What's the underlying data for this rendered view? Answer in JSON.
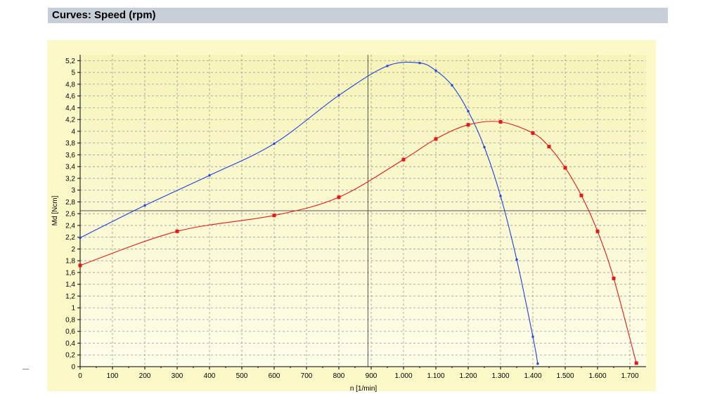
{
  "header": {
    "title": "Curves: Speed (rpm)"
  },
  "colors": {
    "panel_bg": "#fbf9c8",
    "plot_bg_top": "#f6f4b9",
    "plot_bg_bottom": "#fefde9",
    "header_bg": "#c8ced7",
    "grid": "#9a9a9a",
    "crosshair": "#555555",
    "series_blue": "#1f3fe0",
    "series_red": "#e01a1a"
  },
  "chart_data": {
    "type": "line",
    "xlabel": "n [1/min]",
    "ylabel": "Md [Ncm]",
    "xlim": [
      0,
      1750
    ],
    "ylim": [
      0,
      5.3
    ],
    "grid": true,
    "legend": "none",
    "crosshair": {
      "x": 890,
      "y": 2.65
    },
    "x_ticks": [
      0,
      100,
      200,
      300,
      400,
      500,
      600,
      700,
      800,
      900,
      1000,
      1100,
      1200,
      1300,
      1400,
      1500,
      1600,
      1700
    ],
    "x_tick_labels": [
      "0",
      "100",
      "200",
      "300",
      "400",
      "500",
      "600",
      "700",
      "800",
      "900",
      "1.000",
      "1.100",
      "1.200",
      "1.300",
      "1.400",
      "1.500",
      "1.600",
      "1.700"
    ],
    "y_ticks": [
      0,
      0.2,
      0.4,
      0.6,
      0.8,
      1,
      1.2,
      1.4,
      1.6,
      1.8,
      2,
      2.2,
      2.4,
      2.6,
      2.8,
      3,
      3.2,
      3.4,
      3.6,
      3.8,
      4,
      4.2,
      4.4,
      4.6,
      4.8,
      5,
      5.2
    ],
    "y_tick_labels": [
      "0",
      "0,2",
      "0,4",
      "0,6",
      "0,8",
      "1",
      "1,2",
      "1,4",
      "1,6",
      "1,8",
      "2",
      "2,2",
      "2,4",
      "2,6",
      "2,8",
      "3",
      "3,2",
      "3,4",
      "3,6",
      "3,8",
      "4",
      "4,2",
      "4,4",
      "4,6",
      "4,8",
      "5",
      "5,2"
    ],
    "series": [
      {
        "color": "#1f3fe0",
        "marker": "small-square",
        "points": [
          [
            0,
            2.19
          ],
          [
            200,
            2.74
          ],
          [
            400,
            3.25
          ],
          [
            600,
            3.79
          ],
          [
            800,
            4.61
          ],
          [
            950,
            5.11
          ],
          [
            1050,
            5.16
          ],
          [
            1100,
            5.03
          ],
          [
            1150,
            4.78
          ],
          [
            1200,
            4.34
          ],
          [
            1250,
            3.73
          ],
          [
            1300,
            2.9
          ],
          [
            1350,
            1.82
          ],
          [
            1400,
            0.51
          ],
          [
            1415,
            0.05
          ]
        ]
      },
      {
        "color": "#e01a1a",
        "marker": "square",
        "points": [
          [
            0,
            1.72
          ],
          [
            300,
            2.3
          ],
          [
            600,
            2.57
          ],
          [
            800,
            2.88
          ],
          [
            1000,
            3.52
          ],
          [
            1100,
            3.87
          ],
          [
            1200,
            4.11
          ],
          [
            1300,
            4.16
          ],
          [
            1400,
            3.97
          ],
          [
            1450,
            3.74
          ],
          [
            1500,
            3.38
          ],
          [
            1550,
            2.91
          ],
          [
            1600,
            2.3
          ],
          [
            1650,
            1.5
          ],
          [
            1720,
            0.06
          ]
        ]
      }
    ]
  }
}
